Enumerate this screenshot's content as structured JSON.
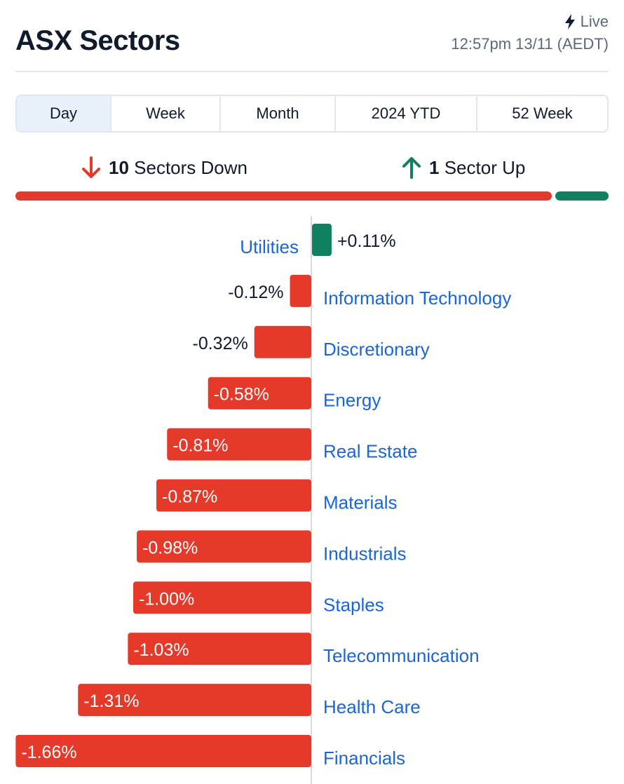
{
  "header": {
    "title": "ASX Sectors",
    "live_label": "Live",
    "timestamp": "12:57pm 13/11 (AEDT)"
  },
  "tabs": [
    {
      "label": "Day",
      "active": true
    },
    {
      "label": "Week",
      "active": false
    },
    {
      "label": "Month",
      "active": false
    },
    {
      "label": "2024 YTD",
      "active": false
    },
    {
      "label": "52 Week",
      "active": false
    }
  ],
  "summary": {
    "down_count": "10",
    "down_label": "Sectors Down",
    "up_count": "1",
    "up_label": "Sector Up"
  },
  "colors": {
    "down": "#e5392a",
    "up": "#0f8060",
    "link": "#1a66d6"
  },
  "chart_data": {
    "type": "bar",
    "orientation": "horizontal-diverging",
    "unit": "%",
    "categories": [
      "Utilities",
      "Information Technology",
      "Discretionary",
      "Energy",
      "Real Estate",
      "Materials",
      "Industrials",
      "Staples",
      "Telecommunication",
      "Health Care",
      "Financials"
    ],
    "values": [
      0.11,
      -0.12,
      -0.32,
      -0.58,
      -0.81,
      -0.87,
      -0.98,
      -1.0,
      -1.03,
      -1.31,
      -1.66
    ],
    "value_labels": [
      "+0.11%",
      "-0.12%",
      "-0.32%",
      "-0.58%",
      "-0.81%",
      "-0.87%",
      "-0.98%",
      "-1.00%",
      "-1.03%",
      "-1.31%",
      "-1.66%"
    ]
  }
}
